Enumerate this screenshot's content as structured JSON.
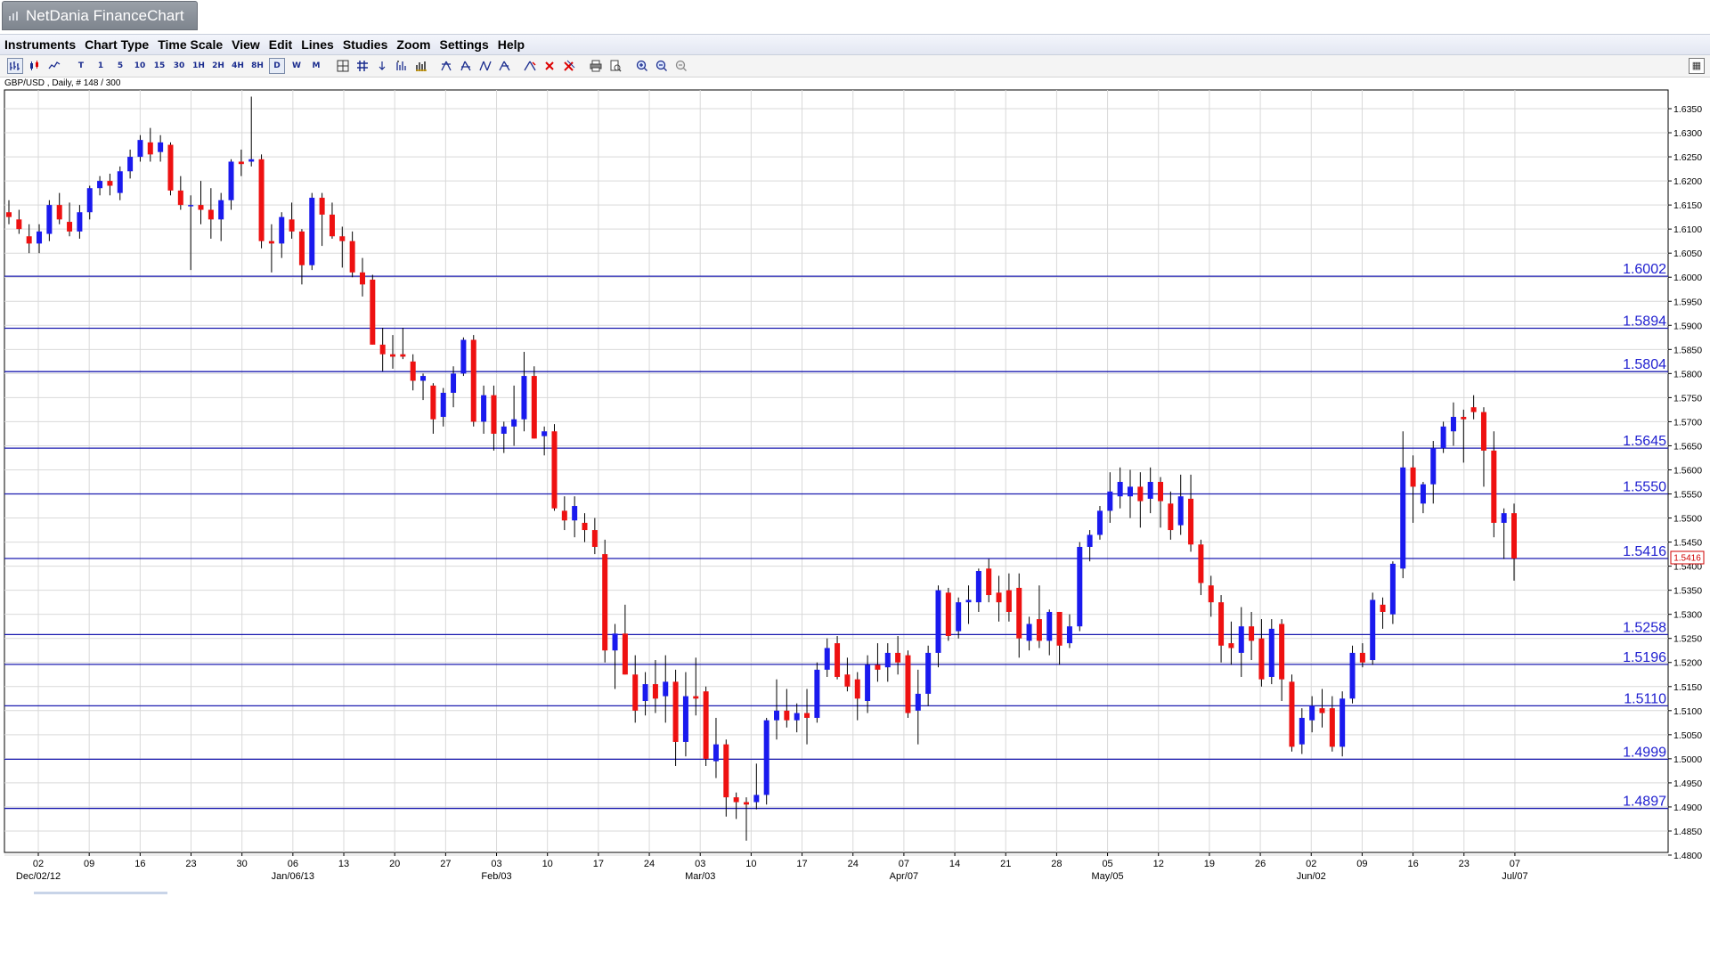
{
  "app": {
    "title": "NetDania FinanceChart"
  },
  "menu": [
    {
      "label": "Instruments"
    },
    {
      "label": "Chart Type"
    },
    {
      "label": "Time Scale"
    },
    {
      "label": "View"
    },
    {
      "label": "Edit"
    },
    {
      "label": "Lines"
    },
    {
      "label": "Studies"
    },
    {
      "label": "Zoom"
    },
    {
      "label": "Settings"
    },
    {
      "label": "Help"
    }
  ],
  "toolbar": {
    "timescales": [
      "T",
      "1",
      "5",
      "10",
      "15",
      "30",
      "1H",
      "2H",
      "4H",
      "8H",
      "D",
      "W",
      "M"
    ],
    "selected_timescale": "D",
    "icons": [
      "bar-chart-icon",
      "candlestick-icon",
      "line-chart-icon",
      "crosshair-icon",
      "grid-icon",
      "arrow-icon",
      "studies-icon",
      "volume-icon",
      "fib-icon",
      "channel-icon",
      "pitchfork-icon",
      "gann-icon",
      "lines-icon",
      "delete-icon",
      "delete-all-icon",
      "print-icon",
      "print-preview-icon",
      "zoom-in-icon",
      "zoom-out-icon",
      "zoom-reset-icon",
      "detach-icon"
    ]
  },
  "instrument_label": "GBP/USD , Daily, # 148 / 300",
  "colors": {
    "up": "#1a1aee",
    "down": "#ee1111",
    "hline": "#1b1bb0",
    "grid": "#d9d9d9",
    "label": "#2020d0",
    "current_price": "#d00000"
  },
  "chart_data": {
    "type": "candlestick",
    "instrument": "GBP/USD",
    "interval": "Daily",
    "ylim": [
      1.48,
      1.6375
    ],
    "ytick_labels": [
      "1.6350",
      "1.6300",
      "1.6250",
      "1.6200",
      "1.6150",
      "1.6100",
      "1.6050",
      "1.6000",
      "1.5950",
      "1.5900",
      "1.5850",
      "1.5800",
      "1.5750",
      "1.5700",
      "1.5650",
      "1.5600",
      "1.5550",
      "1.5500",
      "1.5450",
      "1.5400",
      "1.5350",
      "1.5300",
      "1.5250",
      "1.5200",
      "1.5150",
      "1.5100",
      "1.5050",
      "1.5000",
      "1.4950",
      "1.4900",
      "1.4850",
      "1.4800"
    ],
    "xtick_labels": [
      "02",
      "09",
      "16",
      "23",
      "30",
      "06",
      "13",
      "20",
      "27",
      "03",
      "10",
      "17",
      "24",
      "03",
      "10",
      "17",
      "24",
      "07",
      "14",
      "21",
      "28",
      "05",
      "12",
      "19",
      "26",
      "02",
      "09",
      "16",
      "23",
      "07"
    ],
    "x_sub_labels": [
      {
        "tick": 0,
        "text": "Dec/02/12"
      },
      {
        "tick": 5,
        "text": "Jan/06/13"
      },
      {
        "tick": 9,
        "text": "Feb/03"
      },
      {
        "tick": 13,
        "text": "Mar/03"
      },
      {
        "tick": 17,
        "text": "Apr/07"
      },
      {
        "tick": 21,
        "text": "May/05"
      },
      {
        "tick": 25,
        "text": "Jun/02"
      },
      {
        "tick": 29,
        "text": "Jul/07"
      }
    ],
    "grid": true,
    "current_price": "1.5416",
    "horizontal_levels": [
      "1.6002",
      "1.5894",
      "1.5804",
      "1.5645",
      "1.5550",
      "1.5416",
      "1.5258",
      "1.5196",
      "1.5110",
      "1.4999",
      "1.4897"
    ],
    "candles": [
      {
        "o": 1.6135,
        "h": 1.616,
        "l": 1.611,
        "c": 1.6125
      },
      {
        "o": 1.612,
        "h": 1.614,
        "l": 1.609,
        "c": 1.61
      },
      {
        "o": 1.6085,
        "h": 1.611,
        "l": 1.605,
        "c": 1.607
      },
      {
        "o": 1.607,
        "h": 1.611,
        "l": 1.605,
        "c": 1.6095
      },
      {
        "o": 1.609,
        "h": 1.616,
        "l": 1.6075,
        "c": 1.615
      },
      {
        "o": 1.615,
        "h": 1.6175,
        "l": 1.611,
        "c": 1.612
      },
      {
        "o": 1.6115,
        "h": 1.6155,
        "l": 1.6085,
        "c": 1.6095
      },
      {
        "o": 1.6095,
        "h": 1.615,
        "l": 1.608,
        "c": 1.6135
      },
      {
        "o": 1.6135,
        "h": 1.619,
        "l": 1.612,
        "c": 1.6185
      },
      {
        "o": 1.6185,
        "h": 1.621,
        "l": 1.617,
        "c": 1.62
      },
      {
        "o": 1.62,
        "h": 1.6215,
        "l": 1.617,
        "c": 1.619
      },
      {
        "o": 1.6175,
        "h": 1.623,
        "l": 1.616,
        "c": 1.622
      },
      {
        "o": 1.622,
        "h": 1.6265,
        "l": 1.6205,
        "c": 1.625
      },
      {
        "o": 1.625,
        "h": 1.6295,
        "l": 1.624,
        "c": 1.6285
      },
      {
        "o": 1.628,
        "h": 1.631,
        "l": 1.624,
        "c": 1.6255
      },
      {
        "o": 1.626,
        "h": 1.6295,
        "l": 1.624,
        "c": 1.628
      },
      {
        "o": 1.6275,
        "h": 1.628,
        "l": 1.617,
        "c": 1.618
      },
      {
        "o": 1.618,
        "h": 1.621,
        "l": 1.614,
        "c": 1.615
      },
      {
        "o": 1.615,
        "h": 1.617,
        "l": 1.6015,
        "c": 1.615
      },
      {
        "o": 1.615,
        "h": 1.62,
        "l": 1.611,
        "c": 1.614
      },
      {
        "o": 1.614,
        "h": 1.6185,
        "l": 1.608,
        "c": 1.612
      },
      {
        "o": 1.612,
        "h": 1.6175,
        "l": 1.6075,
        "c": 1.616
      },
      {
        "o": 1.616,
        "h": 1.6245,
        "l": 1.614,
        "c": 1.624
      },
      {
        "o": 1.624,
        "h": 1.6265,
        "l": 1.621,
        "c": 1.6235
      },
      {
        "o": 1.624,
        "h": 1.6375,
        "l": 1.623,
        "c": 1.6245
      },
      {
        "o": 1.6245,
        "h": 1.6255,
        "l": 1.606,
        "c": 1.6075
      },
      {
        "o": 1.6075,
        "h": 1.611,
        "l": 1.601,
        "c": 1.607
      },
      {
        "o": 1.607,
        "h": 1.6135,
        "l": 1.604,
        "c": 1.6125
      },
      {
        "o": 1.612,
        "h": 1.6155,
        "l": 1.608,
        "c": 1.6095
      },
      {
        "o": 1.6095,
        "h": 1.61,
        "l": 1.5985,
        "c": 1.6025
      },
      {
        "o": 1.6025,
        "h": 1.6175,
        "l": 1.6015,
        "c": 1.6165
      },
      {
        "o": 1.6165,
        "h": 1.6175,
        "l": 1.6065,
        "c": 1.613
      },
      {
        "o": 1.613,
        "h": 1.6155,
        "l": 1.608,
        "c": 1.6085
      },
      {
        "o": 1.6085,
        "h": 1.6105,
        "l": 1.602,
        "c": 1.6075
      },
      {
        "o": 1.6075,
        "h": 1.6095,
        "l": 1.6,
        "c": 1.601
      },
      {
        "o": 1.601,
        "h": 1.604,
        "l": 1.596,
        "c": 1.5985
      },
      {
        "o": 1.5995,
        "h": 1.6005,
        "l": 1.586,
        "c": 1.586
      },
      {
        "o": 1.586,
        "h": 1.5895,
        "l": 1.5805,
        "c": 1.584
      },
      {
        "o": 1.584,
        "h": 1.588,
        "l": 1.581,
        "c": 1.5835
      },
      {
        "o": 1.584,
        "h": 1.5895,
        "l": 1.583,
        "c": 1.5835
      },
      {
        "o": 1.5825,
        "h": 1.584,
        "l": 1.5765,
        "c": 1.5785
      },
      {
        "o": 1.5785,
        "h": 1.58,
        "l": 1.5745,
        "c": 1.5795
      },
      {
        "o": 1.5775,
        "h": 1.578,
        "l": 1.5675,
        "c": 1.5705
      },
      {
        "o": 1.571,
        "h": 1.577,
        "l": 1.569,
        "c": 1.576
      },
      {
        "o": 1.576,
        "h": 1.5815,
        "l": 1.573,
        "c": 1.58
      },
      {
        "o": 1.58,
        "h": 1.5875,
        "l": 1.5795,
        "c": 1.587
      },
      {
        "o": 1.587,
        "h": 1.588,
        "l": 1.569,
        "c": 1.57
      },
      {
        "o": 1.57,
        "h": 1.5775,
        "l": 1.5675,
        "c": 1.5755
      },
      {
        "o": 1.5755,
        "h": 1.5775,
        "l": 1.564,
        "c": 1.5675
      },
      {
        "o": 1.5675,
        "h": 1.57,
        "l": 1.5635,
        "c": 1.569
      },
      {
        "o": 1.569,
        "h": 1.5775,
        "l": 1.565,
        "c": 1.5705
      },
      {
        "o": 1.5705,
        "h": 1.5845,
        "l": 1.568,
        "c": 1.5795
      },
      {
        "o": 1.5795,
        "h": 1.5815,
        "l": 1.5665,
        "c": 1.5665
      },
      {
        "o": 1.567,
        "h": 1.569,
        "l": 1.563,
        "c": 1.568
      },
      {
        "o": 1.568,
        "h": 1.5695,
        "l": 1.5515,
        "c": 1.552
      },
      {
        "o": 1.5515,
        "h": 1.5545,
        "l": 1.5475,
        "c": 1.5495
      },
      {
        "o": 1.5495,
        "h": 1.5545,
        "l": 1.546,
        "c": 1.5525
      },
      {
        "o": 1.549,
        "h": 1.551,
        "l": 1.545,
        "c": 1.5475
      },
      {
        "o": 1.5475,
        "h": 1.55,
        "l": 1.5425,
        "c": 1.544
      },
      {
        "o": 1.5425,
        "h": 1.5455,
        "l": 1.52,
        "c": 1.5225
      },
      {
        "o": 1.5225,
        "h": 1.528,
        "l": 1.5145,
        "c": 1.526
      },
      {
        "o": 1.526,
        "h": 1.532,
        "l": 1.5175,
        "c": 1.5175
      },
      {
        "o": 1.5175,
        "h": 1.5215,
        "l": 1.5075,
        "c": 1.51
      },
      {
        "o": 1.512,
        "h": 1.518,
        "l": 1.509,
        "c": 1.5155
      },
      {
        "o": 1.5155,
        "h": 1.5205,
        "l": 1.5095,
        "c": 1.5125
      },
      {
        "o": 1.513,
        "h": 1.5215,
        "l": 1.5075,
        "c": 1.516
      },
      {
        "o": 1.516,
        "h": 1.5185,
        "l": 1.4985,
        "c": 1.5035
      },
      {
        "o": 1.5035,
        "h": 1.518,
        "l": 1.5005,
        "c": 1.513
      },
      {
        "o": 1.513,
        "h": 1.521,
        "l": 1.509,
        "c": 1.5125
      },
      {
        "o": 1.514,
        "h": 1.515,
        "l": 1.4985,
        "c": 1.5
      },
      {
        "o": 1.4995,
        "h": 1.5085,
        "l": 1.496,
        "c": 1.503
      },
      {
        "o": 1.503,
        "h": 1.504,
        "l": 1.488,
        "c": 1.492
      },
      {
        "o": 1.492,
        "h": 1.493,
        "l": 1.4875,
        "c": 1.491
      },
      {
        "o": 1.491,
        "h": 1.492,
        "l": 1.483,
        "c": 1.4905
      },
      {
        "o": 1.491,
        "h": 1.499,
        "l": 1.4895,
        "c": 1.4925
      },
      {
        "o": 1.4925,
        "h": 1.5085,
        "l": 1.4905,
        "c": 1.508
      },
      {
        "o": 1.508,
        "h": 1.5165,
        "l": 1.504,
        "c": 1.51
      },
      {
        "o": 1.51,
        "h": 1.5145,
        "l": 1.5065,
        "c": 1.508
      },
      {
        "o": 1.508,
        "h": 1.5115,
        "l": 1.5055,
        "c": 1.5095
      },
      {
        "o": 1.5095,
        "h": 1.5145,
        "l": 1.503,
        "c": 1.5085
      },
      {
        "o": 1.5085,
        "h": 1.52,
        "l": 1.5075,
        "c": 1.5185
      },
      {
        "o": 1.5185,
        "h": 1.525,
        "l": 1.517,
        "c": 1.523
      },
      {
        "o": 1.524,
        "h": 1.5255,
        "l": 1.5165,
        "c": 1.517
      },
      {
        "o": 1.5175,
        "h": 1.521,
        "l": 1.514,
        "c": 1.515
      },
      {
        "o": 1.5165,
        "h": 1.518,
        "l": 1.508,
        "c": 1.5125
      },
      {
        "o": 1.512,
        "h": 1.5215,
        "l": 1.5095,
        "c": 1.5195
      },
      {
        "o": 1.5195,
        "h": 1.524,
        "l": 1.516,
        "c": 1.5185
      },
      {
        "o": 1.519,
        "h": 1.524,
        "l": 1.516,
        "c": 1.522
      },
      {
        "o": 1.522,
        "h": 1.5255,
        "l": 1.5175,
        "c": 1.52
      },
      {
        "o": 1.5215,
        "h": 1.5225,
        "l": 1.5085,
        "c": 1.5095
      },
      {
        "o": 1.51,
        "h": 1.5185,
        "l": 1.503,
        "c": 1.5135
      },
      {
        "o": 1.5135,
        "h": 1.5235,
        "l": 1.511,
        "c": 1.522
      },
      {
        "o": 1.522,
        "h": 1.536,
        "l": 1.519,
        "c": 1.535
      },
      {
        "o": 1.5345,
        "h": 1.5355,
        "l": 1.5245,
        "c": 1.5255
      },
      {
        "o": 1.5265,
        "h": 1.5335,
        "l": 1.525,
        "c": 1.5325
      },
      {
        "o": 1.5325,
        "h": 1.536,
        "l": 1.528,
        "c": 1.533
      },
      {
        "o": 1.5325,
        "h": 1.5395,
        "l": 1.5305,
        "c": 1.539
      },
      {
        "o": 1.5395,
        "h": 1.5415,
        "l": 1.5325,
        "c": 1.534
      },
      {
        "o": 1.5345,
        "h": 1.538,
        "l": 1.5285,
        "c": 1.5325
      },
      {
        "o": 1.535,
        "h": 1.5385,
        "l": 1.5285,
        "c": 1.5305
      },
      {
        "o": 1.5355,
        "h": 1.5385,
        "l": 1.521,
        "c": 1.525
      },
      {
        "o": 1.5245,
        "h": 1.5295,
        "l": 1.5225,
        "c": 1.528
      },
      {
        "o": 1.529,
        "h": 1.536,
        "l": 1.523,
        "c": 1.5245
      },
      {
        "o": 1.5245,
        "h": 1.531,
        "l": 1.5215,
        "c": 1.5305
      },
      {
        "o": 1.5305,
        "h": 1.5305,
        "l": 1.5195,
        "c": 1.5235
      },
      {
        "o": 1.524,
        "h": 1.53,
        "l": 1.523,
        "c": 1.5275
      },
      {
        "o": 1.5275,
        "h": 1.545,
        "l": 1.5265,
        "c": 1.544
      },
      {
        "o": 1.544,
        "h": 1.5475,
        "l": 1.541,
        "c": 1.5465
      },
      {
        "o": 1.5465,
        "h": 1.5525,
        "l": 1.5455,
        "c": 1.5515
      },
      {
        "o": 1.5515,
        "h": 1.5595,
        "l": 1.549,
        "c": 1.5555
      },
      {
        "o": 1.5545,
        "h": 1.5605,
        "l": 1.552,
        "c": 1.5575
      },
      {
        "o": 1.5545,
        "h": 1.56,
        "l": 1.55,
        "c": 1.5565
      },
      {
        "o": 1.5565,
        "h": 1.5595,
        "l": 1.548,
        "c": 1.5535
      },
      {
        "o": 1.554,
        "h": 1.5605,
        "l": 1.551,
        "c": 1.5575
      },
      {
        "o": 1.5575,
        "h": 1.5585,
        "l": 1.548,
        "c": 1.5535
      },
      {
        "o": 1.553,
        "h": 1.5555,
        "l": 1.5455,
        "c": 1.5475
      },
      {
        "o": 1.5485,
        "h": 1.559,
        "l": 1.5465,
        "c": 1.5545
      },
      {
        "o": 1.554,
        "h": 1.559,
        "l": 1.543,
        "c": 1.5445
      },
      {
        "o": 1.5445,
        "h": 1.5455,
        "l": 1.534,
        "c": 1.5365
      },
      {
        "o": 1.536,
        "h": 1.538,
        "l": 1.5295,
        "c": 1.5325
      },
      {
        "o": 1.5325,
        "h": 1.534,
        "l": 1.52,
        "c": 1.5235
      },
      {
        "o": 1.524,
        "h": 1.5285,
        "l": 1.5195,
        "c": 1.523
      },
      {
        "o": 1.522,
        "h": 1.5315,
        "l": 1.517,
        "c": 1.5275
      },
      {
        "o": 1.5275,
        "h": 1.5305,
        "l": 1.5205,
        "c": 1.5245
      },
      {
        "o": 1.525,
        "h": 1.529,
        "l": 1.515,
        "c": 1.5165
      },
      {
        "o": 1.517,
        "h": 1.529,
        "l": 1.5155,
        "c": 1.527
      },
      {
        "o": 1.528,
        "h": 1.529,
        "l": 1.512,
        "c": 1.5165
      },
      {
        "o": 1.516,
        "h": 1.5175,
        "l": 1.5015,
        "c": 1.5025
      },
      {
        "o": 1.503,
        "h": 1.5105,
        "l": 1.501,
        "c": 1.5085
      },
      {
        "o": 1.508,
        "h": 1.513,
        "l": 1.5055,
        "c": 1.511
      },
      {
        "o": 1.5105,
        "h": 1.5145,
        "l": 1.5065,
        "c": 1.5095
      },
      {
        "o": 1.5105,
        "h": 1.513,
        "l": 1.5015,
        "c": 1.5025
      },
      {
        "o": 1.5025,
        "h": 1.514,
        "l": 1.5005,
        "c": 1.5125
      },
      {
        "o": 1.5125,
        "h": 1.5235,
        "l": 1.5115,
        "c": 1.522
      },
      {
        "o": 1.522,
        "h": 1.524,
        "l": 1.519,
        "c": 1.52
      },
      {
        "o": 1.5205,
        "h": 1.5345,
        "l": 1.5195,
        "c": 1.533
      },
      {
        "o": 1.532,
        "h": 1.5335,
        "l": 1.527,
        "c": 1.5305
      },
      {
        "o": 1.53,
        "h": 1.541,
        "l": 1.528,
        "c": 1.5405
      },
      {
        "o": 1.5395,
        "h": 1.568,
        "l": 1.5375,
        "c": 1.5605
      },
      {
        "o": 1.5605,
        "h": 1.563,
        "l": 1.549,
        "c": 1.5565
      },
      {
        "o": 1.553,
        "h": 1.5575,
        "l": 1.551,
        "c": 1.557
      },
      {
        "o": 1.557,
        "h": 1.566,
        "l": 1.553,
        "c": 1.5645
      },
      {
        "o": 1.5645,
        "h": 1.57,
        "l": 1.5635,
        "c": 1.569
      },
      {
        "o": 1.568,
        "h": 1.574,
        "l": 1.565,
        "c": 1.571
      },
      {
        "o": 1.571,
        "h": 1.5725,
        "l": 1.5615,
        "c": 1.5705
      },
      {
        "o": 1.573,
        "h": 1.5755,
        "l": 1.5705,
        "c": 1.572
      },
      {
        "o": 1.572,
        "h": 1.573,
        "l": 1.5565,
        "c": 1.564
      },
      {
        "o": 1.564,
        "h": 1.568,
        "l": 1.546,
        "c": 1.549
      },
      {
        "o": 1.549,
        "h": 1.552,
        "l": 1.5415,
        "c": 1.551
      },
      {
        "o": 1.551,
        "h": 1.553,
        "l": 1.537,
        "c": 1.5416
      }
    ]
  }
}
